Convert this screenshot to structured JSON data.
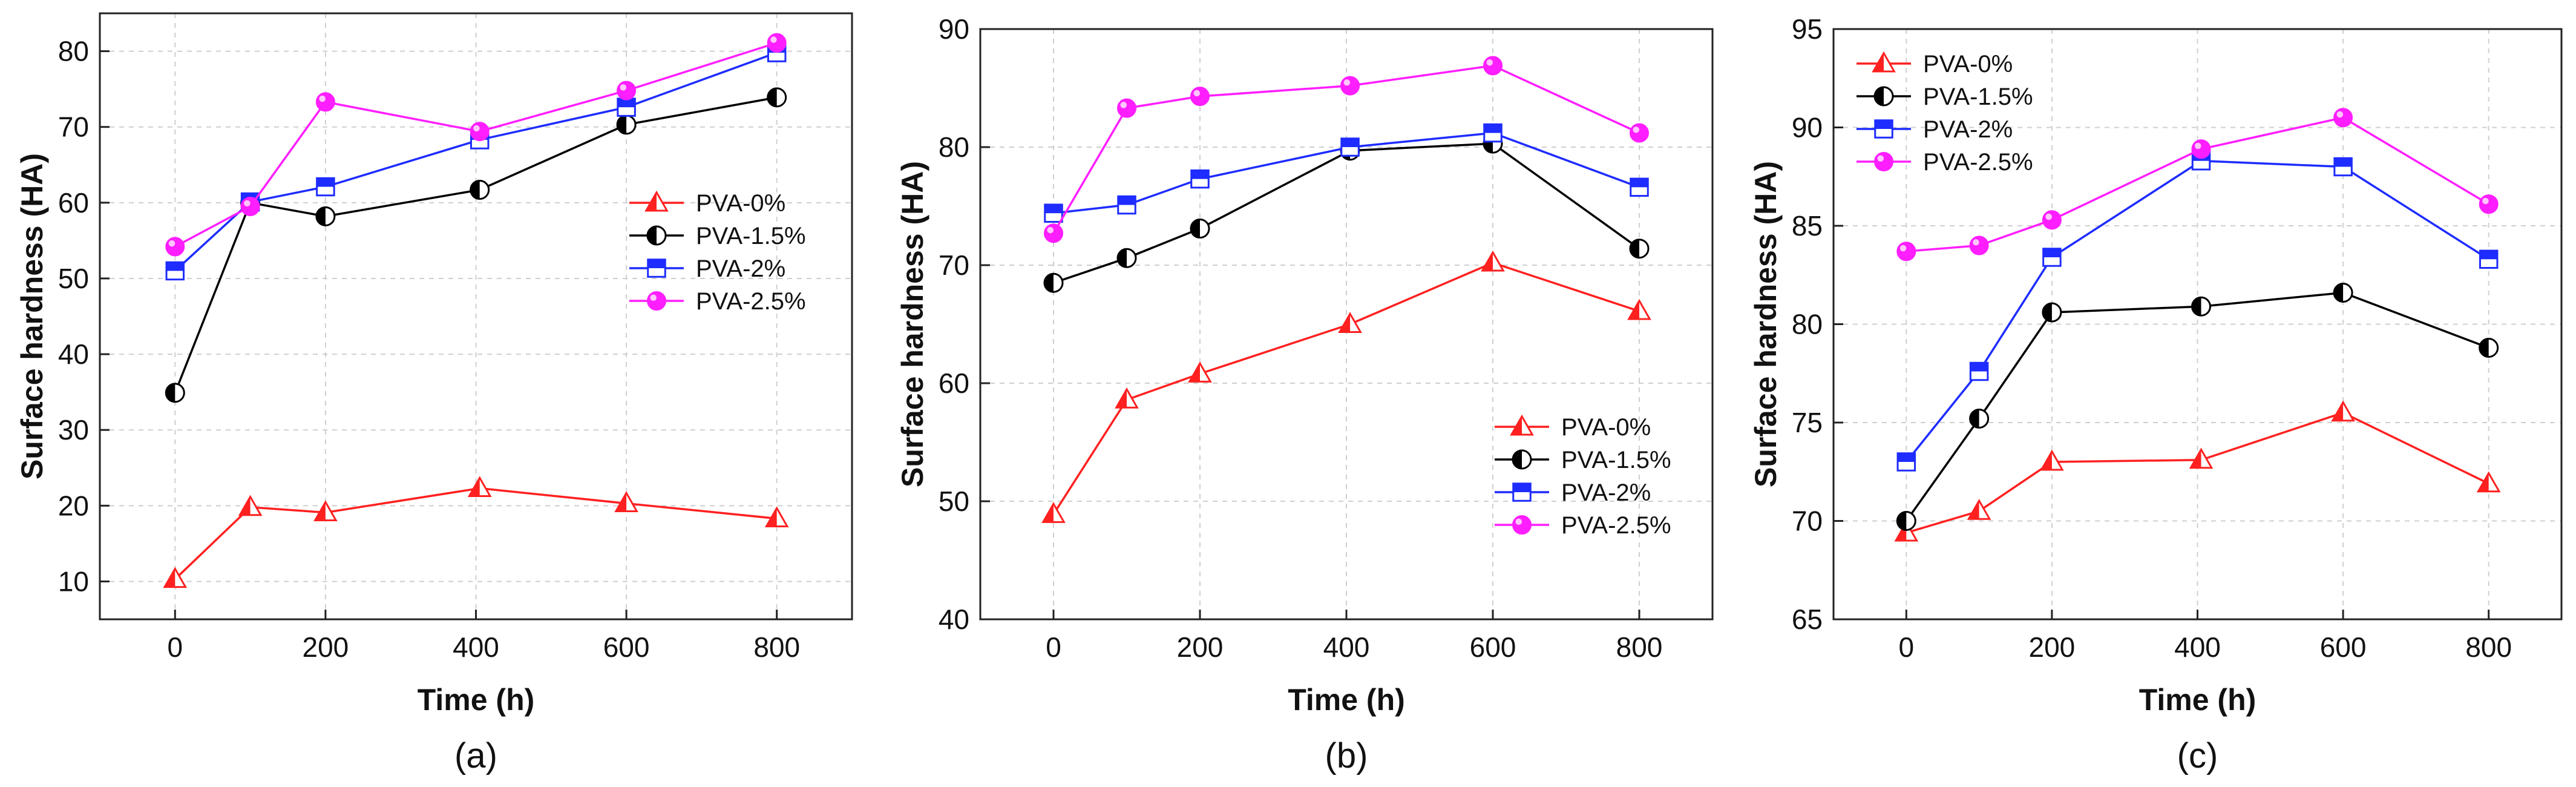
{
  "chart_data": [
    {
      "type": "line",
      "caption": "(a)",
      "xlabel": "Time (h)",
      "ylabel": "Surface hardness (HA)",
      "xlim": [
        -100,
        900
      ],
      "ylim": [
        5,
        85
      ],
      "xticks": [
        0,
        200,
        400,
        600,
        800
      ],
      "yticks": [
        10,
        20,
        30,
        40,
        50,
        60,
        70,
        80
      ],
      "grid": true,
      "legend_position": "center-right",
      "series": [
        {
          "name": "PVA-0%",
          "color": "#ff2020",
          "marker": "triangle",
          "x": [
            0,
            100,
            200,
            405,
            600,
            800
          ],
          "values": [
            10.3,
            19.8,
            19.1,
            22.3,
            20.3,
            18.3
          ]
        },
        {
          "name": "PVA-1.5%",
          "color": "#000000",
          "marker": "half-circle",
          "x": [
            0,
            100,
            200,
            405,
            600,
            800
          ],
          "values": [
            34.9,
            60.0,
            58.2,
            61.7,
            70.3,
            73.9
          ]
        },
        {
          "name": "PVA-2%",
          "color": "#1e2cff",
          "marker": "half-square",
          "x": [
            0,
            100,
            200,
            405,
            600,
            800
          ],
          "values": [
            51.0,
            60.1,
            62.1,
            68.3,
            72.6,
            79.8
          ]
        },
        {
          "name": "PVA-2.5%",
          "color": "#ff1eff",
          "marker": "circle",
          "x": [
            0,
            100,
            200,
            405,
            600,
            800
          ],
          "values": [
            54.2,
            59.5,
            73.3,
            69.4,
            74.8,
            81.1
          ]
        }
      ]
    },
    {
      "type": "line",
      "caption": "(b)",
      "xlabel": "Time (h)",
      "ylabel": "Surface hardness (HA)",
      "xlim": [
        -100,
        900
      ],
      "ylim": [
        40,
        90
      ],
      "xticks": [
        0,
        200,
        400,
        600,
        800
      ],
      "yticks": [
        40,
        50,
        60,
        70,
        80,
        90
      ],
      "grid": true,
      "legend_position": "bottom-right",
      "series": [
        {
          "name": "PVA-0%",
          "color": "#ff2020",
          "marker": "triangle",
          "x": [
            0,
            100,
            200,
            405,
            600,
            800
          ],
          "values": [
            48.9,
            58.6,
            60.8,
            65.0,
            70.2,
            66.1
          ]
        },
        {
          "name": "PVA-1.5%",
          "color": "#000000",
          "marker": "half-circle",
          "x": [
            0,
            100,
            200,
            405,
            600,
            800
          ],
          "values": [
            68.5,
            70.6,
            73.1,
            79.7,
            80.3,
            71.4
          ]
        },
        {
          "name": "PVA-2%",
          "color": "#1e2cff",
          "marker": "half-square",
          "x": [
            0,
            100,
            200,
            405,
            600,
            800
          ],
          "values": [
            74.4,
            75.1,
            77.3,
            80.0,
            81.2,
            76.6
          ]
        },
        {
          "name": "PVA-2.5%",
          "color": "#ff1eff",
          "marker": "circle",
          "x": [
            0,
            100,
            200,
            405,
            600,
            800
          ],
          "values": [
            72.7,
            83.3,
            84.3,
            85.2,
            86.9,
            81.2
          ]
        }
      ]
    },
    {
      "type": "line",
      "caption": "(c)",
      "xlabel": "Time (h)",
      "ylabel": "Surface hardness (HA)",
      "xlim": [
        -100,
        900
      ],
      "ylim": [
        65,
        95
      ],
      "xticks": [
        0,
        200,
        400,
        600,
        800
      ],
      "yticks": [
        65,
        70,
        75,
        80,
        85,
        90,
        95
      ],
      "grid": true,
      "legend_position": "top-left",
      "series": [
        {
          "name": "PVA-0%",
          "color": "#ff2020",
          "marker": "triangle",
          "x": [
            0,
            100,
            200,
            405,
            600,
            800
          ],
          "values": [
            69.4,
            70.5,
            73.0,
            73.1,
            75.5,
            71.9
          ]
        },
        {
          "name": "PVA-1.5%",
          "color": "#000000",
          "marker": "half-circle",
          "x": [
            0,
            100,
            200,
            405,
            600,
            800
          ],
          "values": [
            70.0,
            75.2,
            80.6,
            80.9,
            81.6,
            78.8
          ]
        },
        {
          "name": "PVA-2%",
          "color": "#1e2cff",
          "marker": "half-square",
          "x": [
            0,
            100,
            200,
            405,
            600,
            800
          ],
          "values": [
            73.0,
            77.6,
            83.4,
            88.3,
            88.0,
            83.3
          ]
        },
        {
          "name": "PVA-2.5%",
          "color": "#ff1eff",
          "marker": "circle",
          "x": [
            0,
            100,
            200,
            405,
            600,
            800
          ],
          "values": [
            83.7,
            84.0,
            85.3,
            88.9,
            90.5,
            86.1
          ]
        }
      ]
    }
  ]
}
